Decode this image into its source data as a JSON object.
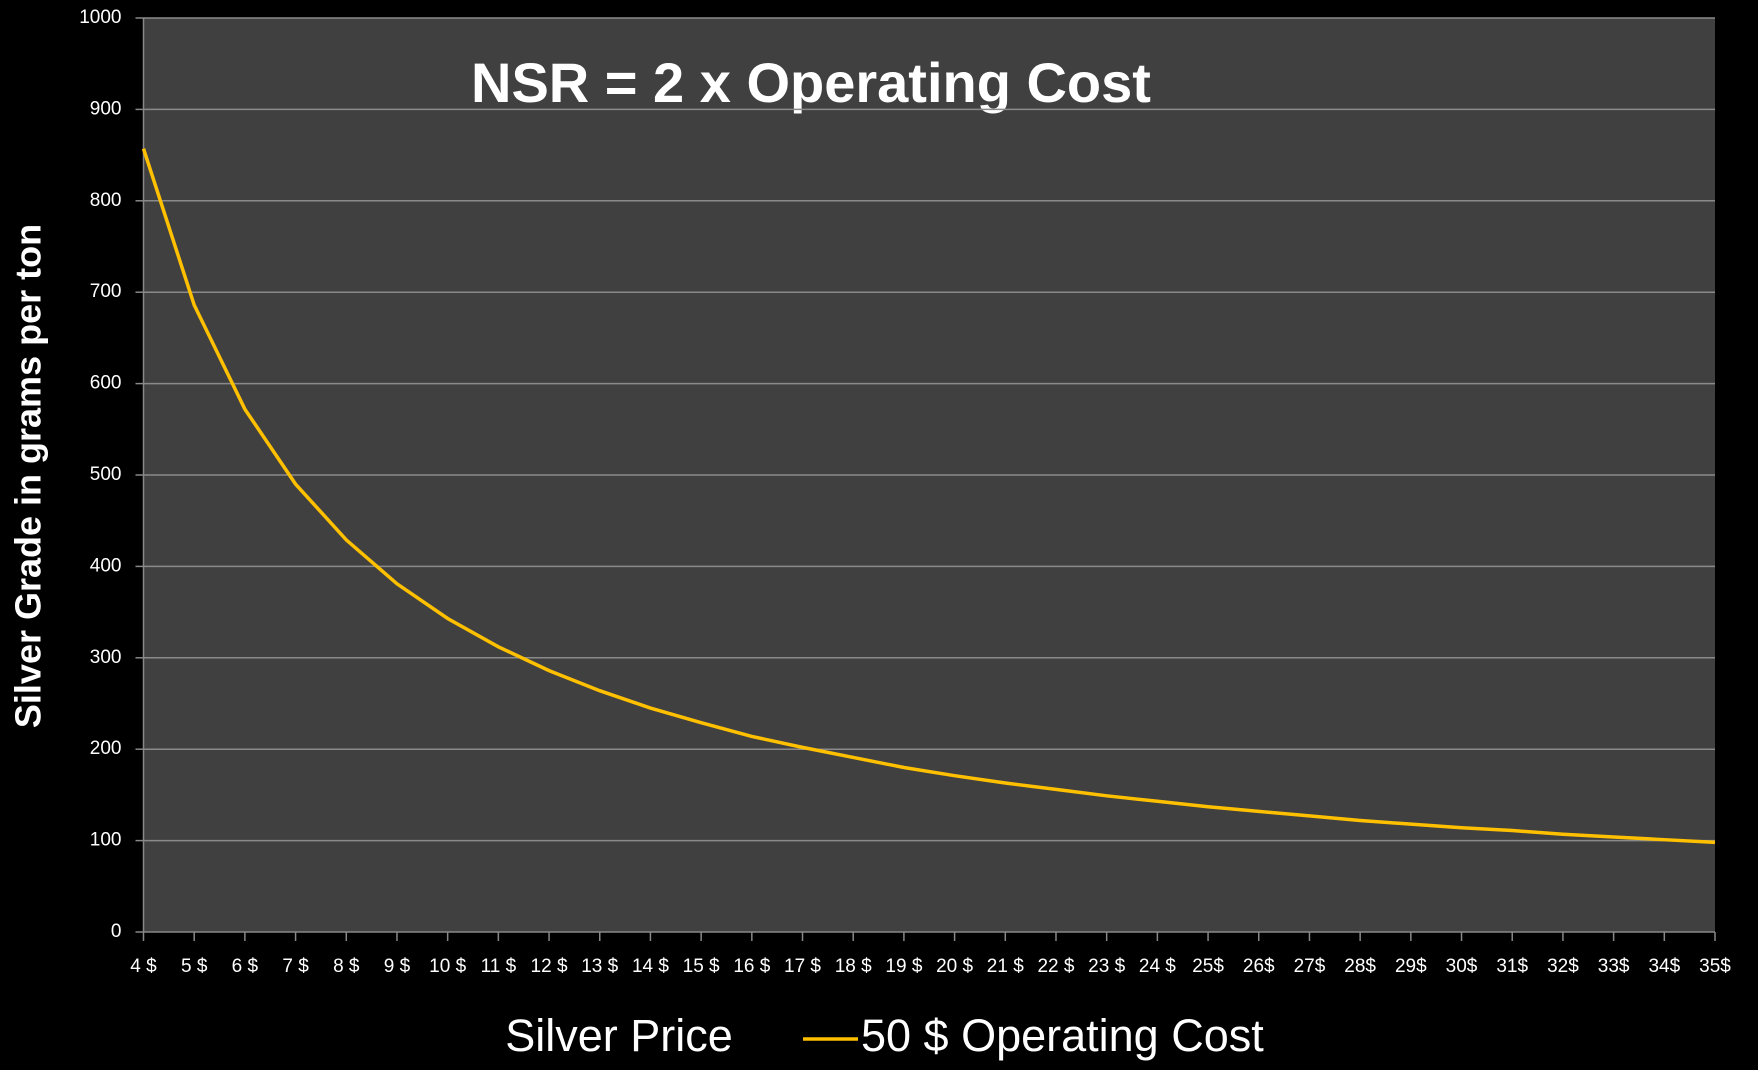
{
  "chart_data": {
    "type": "line",
    "title": "NSR = 2 x Operating Cost",
    "x_label": "Silver Price",
    "y_label": "Silver Grade in grams per ton",
    "categories": [
      "4 $",
      "5 $",
      "6 $",
      "7 $",
      "8 $",
      "9 $",
      "10 $",
      "11 $",
      "12 $",
      "13 $",
      "14 $",
      "15 $",
      "16 $",
      "17 $",
      "18 $",
      "19 $",
      "20 $",
      "21 $",
      "22 $",
      "23 $",
      "24 $",
      "25$",
      "26$",
      "27$",
      "28$",
      "29$",
      "30$",
      "31$",
      "32$",
      "33$",
      "34$",
      "35$"
    ],
    "series": [
      {
        "name": "50 $ Operating Cost",
        "color": "#ffc000",
        "values": [
          857,
          686,
          572,
          490,
          429,
          381,
          343,
          312,
          286,
          264,
          245,
          229,
          214,
          202,
          191,
          180,
          171,
          163,
          156,
          149,
          143,
          137,
          132,
          127,
          122,
          118,
          114,
          111,
          107,
          104,
          101,
          98
        ]
      }
    ],
    "ylim": [
      0,
      1000
    ],
    "yticks": [
      0,
      100,
      200,
      300,
      400,
      500,
      600,
      700,
      800,
      900,
      1000
    ],
    "grid": true,
    "background": "#404040",
    "legend": "bottom"
  }
}
